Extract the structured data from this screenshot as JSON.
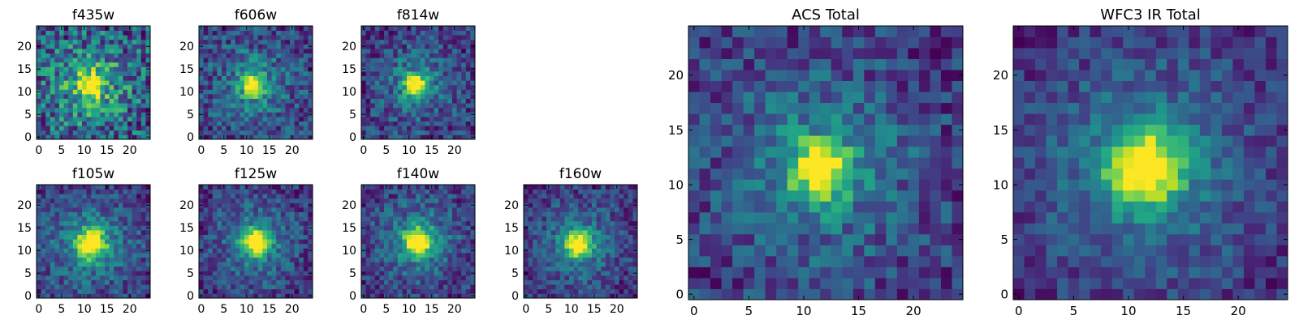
{
  "chart_data": [
    {
      "type": "heatmap",
      "title": "f435w",
      "xlim": [
        -0.5,
        24.5
      ],
      "ylim": [
        -0.5,
        24.5
      ],
      "xticks": [
        0,
        5,
        10,
        15,
        20
      ],
      "yticks": [
        0,
        5,
        10,
        15,
        20
      ],
      "grid": false,
      "colormap": "viridis",
      "source_center": [
        11.5,
        11.5
      ],
      "source_radius": 1.8,
      "noise_level": 0.7
    },
    {
      "type": "heatmap",
      "title": "f606w",
      "xlim": [
        -0.5,
        24.5
      ],
      "ylim": [
        -0.5,
        24.5
      ],
      "xticks": [
        0,
        5,
        10,
        15,
        20
      ],
      "yticks": [
        0,
        5,
        10,
        15,
        20
      ],
      "grid": false,
      "colormap": "viridis",
      "source_center": [
        11.5,
        11.5
      ],
      "source_radius": 1.6,
      "noise_level": 0.55
    },
    {
      "type": "heatmap",
      "title": "f814w",
      "xlim": [
        -0.5,
        24.5
      ],
      "ylim": [
        -0.5,
        24.5
      ],
      "xticks": [
        0,
        5,
        10,
        15,
        20
      ],
      "yticks": [
        0,
        5,
        10,
        15,
        20
      ],
      "grid": false,
      "colormap": "viridis",
      "source_center": [
        11.5,
        11.5
      ],
      "source_radius": 1.6,
      "noise_level": 0.5
    },
    {
      "type": "heatmap",
      "title": "f105w",
      "xlim": [
        -0.5,
        24.5
      ],
      "ylim": [
        -0.5,
        24.5
      ],
      "xticks": [
        0,
        5,
        10,
        15,
        20
      ],
      "yticks": [
        0,
        5,
        10,
        15,
        20
      ],
      "grid": false,
      "colormap": "viridis",
      "source_center": [
        11.5,
        11.5
      ],
      "source_radius": 2.2,
      "noise_level": 0.4
    },
    {
      "type": "heatmap",
      "title": "f125w",
      "xlim": [
        -0.5,
        24.5
      ],
      "ylim": [
        -0.5,
        24.5
      ],
      "xticks": [
        0,
        5,
        10,
        15,
        20
      ],
      "yticks": [
        0,
        5,
        10,
        15,
        20
      ],
      "grid": false,
      "colormap": "viridis",
      "source_center": [
        12,
        12
      ],
      "source_radius": 2.0,
      "noise_level": 0.4
    },
    {
      "type": "heatmap",
      "title": "f140w",
      "xlim": [
        -0.5,
        24.5
      ],
      "ylim": [
        -0.5,
        24.5
      ],
      "xticks": [
        0,
        5,
        10,
        15,
        20
      ],
      "yticks": [
        0,
        5,
        10,
        15,
        20
      ],
      "grid": false,
      "colormap": "viridis",
      "source_center": [
        12,
        12
      ],
      "source_radius": 2.0,
      "noise_level": 0.4
    },
    {
      "type": "heatmap",
      "title": "f160w",
      "xlim": [
        -0.5,
        24.5
      ],
      "ylim": [
        -0.5,
        24.5
      ],
      "xticks": [
        0,
        5,
        10,
        15,
        20
      ],
      "yticks": [
        0,
        5,
        10,
        15,
        20
      ],
      "grid": false,
      "colormap": "viridis",
      "source_center": [
        11.5,
        11.5
      ],
      "source_radius": 2.0,
      "noise_level": 0.4
    },
    {
      "type": "heatmap",
      "title": "ACS Total",
      "xlim": [
        -0.5,
        24.5
      ],
      "ylim": [
        -0.5,
        24.5
      ],
      "xticks": [
        0,
        5,
        10,
        15,
        20
      ],
      "yticks": [
        0,
        5,
        10,
        15,
        20
      ],
      "grid": false,
      "colormap": "viridis",
      "source_center": [
        11.5,
        11.5
      ],
      "source_radius": 1.8,
      "noise_level": 0.45
    },
    {
      "type": "heatmap",
      "title": "WFC3 IR Total",
      "xlim": [
        -0.5,
        24.5
      ],
      "ylim": [
        -0.5,
        24.5
      ],
      "xticks": [
        0,
        5,
        10,
        15,
        20
      ],
      "yticks": [
        0,
        5,
        10,
        15,
        20
      ],
      "grid": false,
      "colormap": "viridis",
      "source_center": [
        11.5,
        11.5
      ],
      "source_radius": 2.3,
      "noise_level": 0.3
    }
  ]
}
